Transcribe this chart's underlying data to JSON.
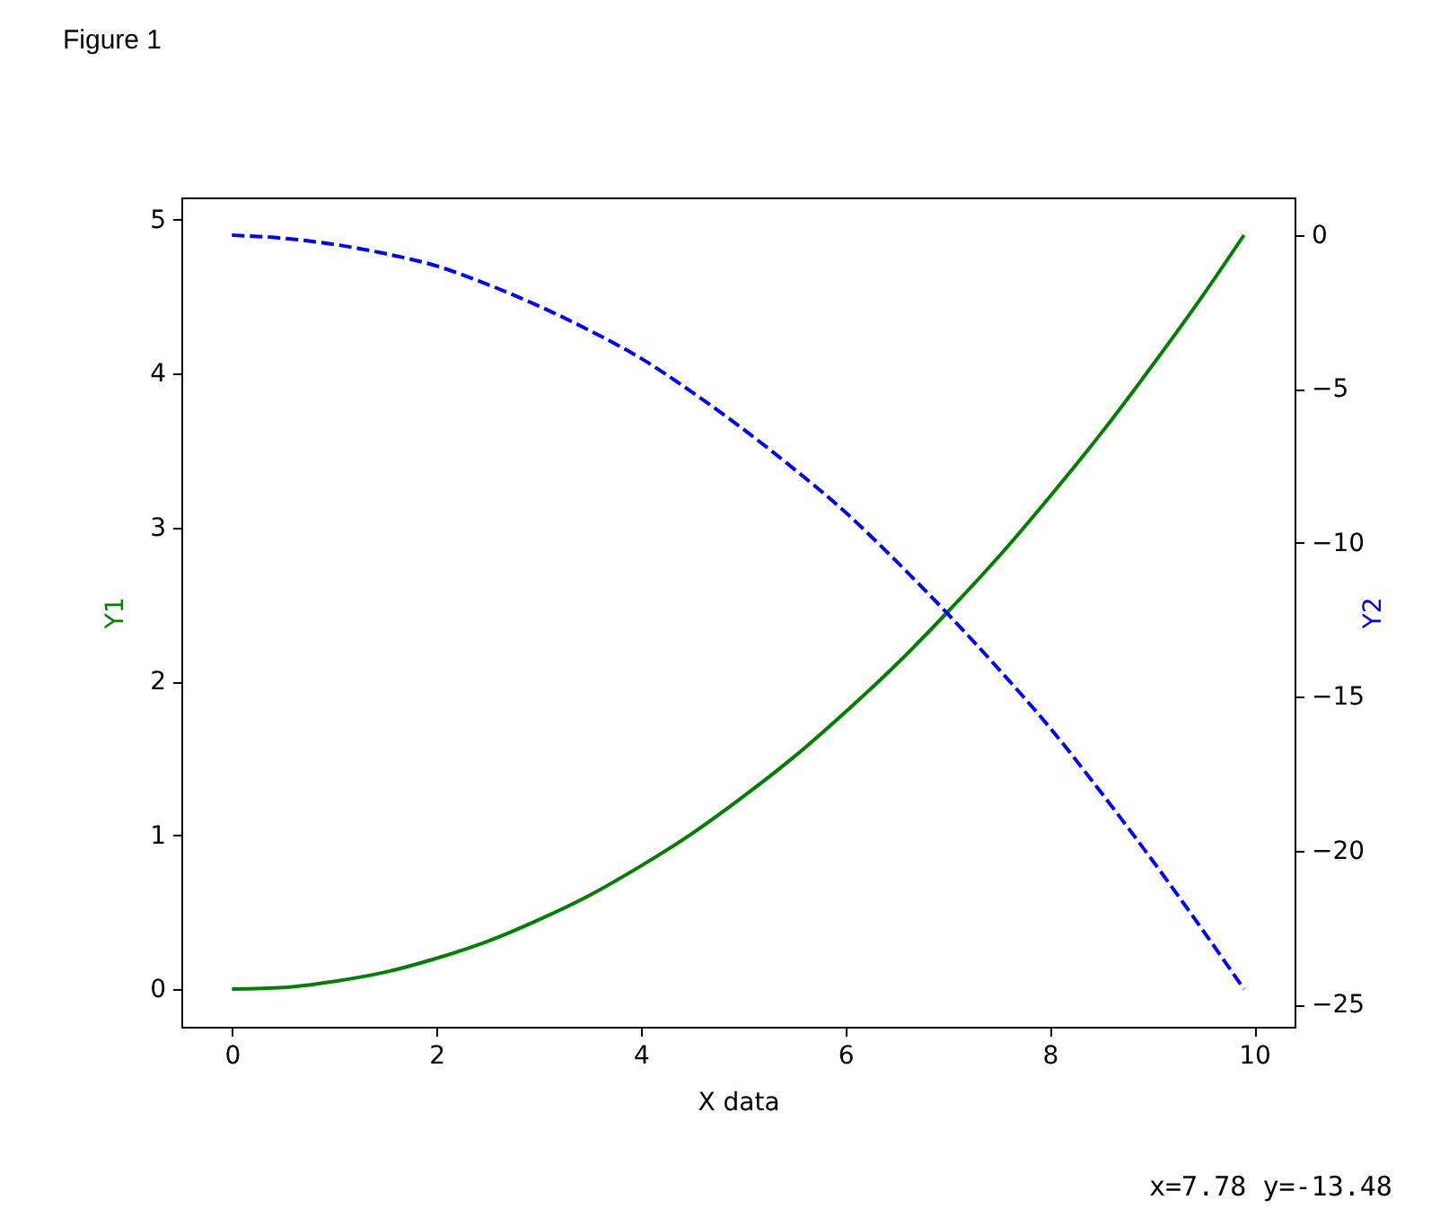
{
  "chart_data": {
    "type": "line",
    "title": "Figure 1",
    "xlabel": "X data",
    "ylabel": "Y1",
    "y2label": "Y2",
    "x": [
      0,
      0.5,
      1,
      1.5,
      2,
      2.5,
      3,
      3.5,
      4,
      4.5,
      5,
      5.5,
      6,
      6.5,
      7,
      7.5,
      8,
      8.5,
      9,
      9.5,
      9.9
    ],
    "series": [
      {
        "color": "#008000",
        "values": [
          0,
          0.01,
          0.05,
          0.11,
          0.2,
          0.31,
          0.45,
          0.61,
          0.8,
          1.01,
          1.25,
          1.51,
          1.8,
          2.11,
          2.45,
          2.81,
          3.2,
          3.61,
          4.05,
          4.51,
          4.9
        ]
      },
      {
        "color": "#0000ff",
        "axis": "y2",
        "line_style": "dashed",
        "values": [
          0,
          -0.1,
          -0.3,
          -0.6,
          -1,
          -1.6,
          -2.3,
          -3.1,
          -4,
          -5.1,
          -6.3,
          -7.6,
          -9,
          -10.6,
          -12.3,
          -14.1,
          -16,
          -18.1,
          -20.3,
          -22.6,
          -24.5
        ]
      }
    ],
    "xlim": [
      -0.495,
      10.395
    ],
    "xticks": [
      0,
      2,
      4,
      6,
      8,
      10
    ],
    "ylim": [
      -0.245,
      5.145
    ],
    "yticks": [
      0,
      1,
      2,
      3,
      4,
      5
    ],
    "y2lim": [
      -25.725,
      1.225
    ],
    "y2ticks": [
      {
        "value": -25,
        "label": "−25"
      },
      {
        "value": -20,
        "label": "−20"
      },
      {
        "value": -15,
        "label": "−15"
      },
      {
        "value": -10,
        "label": "−10"
      },
      {
        "value": -5,
        "label": "−5"
      },
      0
    ],
    "annotations": [
      "x=7.78 y=-13.48"
    ]
  }
}
